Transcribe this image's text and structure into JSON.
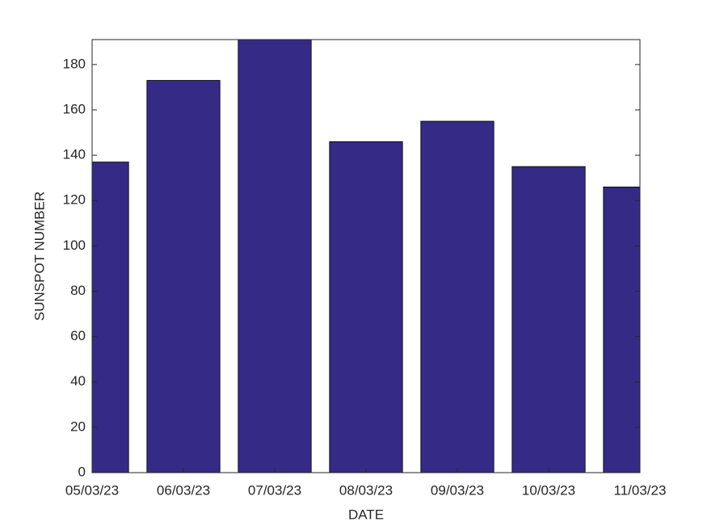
{
  "chart_data": {
    "type": "bar",
    "xlabel": "DATE",
    "ylabel": "SUNSPOT  NUMBER",
    "categories": [
      "05/03/23",
      "06/03/23",
      "07/03/23",
      "08/03/23",
      "09/03/23",
      "10/03/23",
      "11/03/23"
    ],
    "values": [
      137,
      173,
      192,
      146,
      155,
      135,
      126
    ],
    "color": "#352a86",
    "ylim": [
      0,
      191
    ],
    "yticks": [
      0,
      20,
      40,
      60,
      80,
      100,
      120,
      140,
      160,
      180
    ]
  }
}
